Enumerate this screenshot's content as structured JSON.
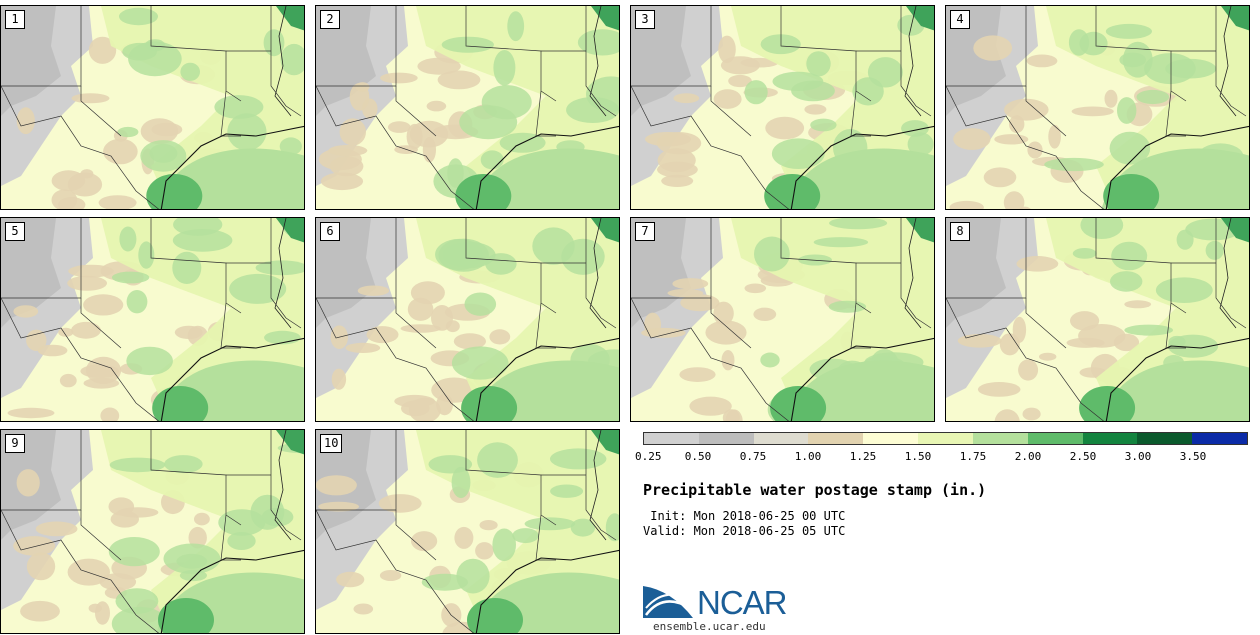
{
  "panels": [
    {
      "label": "1",
      "variant": 0
    },
    {
      "label": "2",
      "variant": 1
    },
    {
      "label": "3",
      "variant": 2
    },
    {
      "label": "4",
      "variant": 3
    },
    {
      "label": "5",
      "variant": 4
    },
    {
      "label": "6",
      "variant": 5
    },
    {
      "label": "7",
      "variant": 6
    },
    {
      "label": "8",
      "variant": 7
    },
    {
      "label": "9",
      "variant": 8
    },
    {
      "label": "10",
      "variant": 9
    }
  ],
  "colorbar": {
    "colors": [
      "#d0d0d0",
      "#bdbdbd",
      "#dedcd0",
      "#e2d3b0",
      "#fdfdd4",
      "#e8f6b4",
      "#b4e09c",
      "#5fbb6a",
      "#13843f",
      "#0b5a2d",
      "#0b2ba7"
    ],
    "tick_labels": [
      "0.25",
      "0.50",
      "0.75",
      "1.00",
      "1.25",
      "1.50",
      "1.75",
      "2.00",
      "2.50",
      "3.00",
      "3.50"
    ]
  },
  "title": "Precipitable water postage stamp (in.)",
  "init": "Init: Mon 2018-06-25 00 UTC",
  "valid": "Valid: Mon 2018-06-25 05 UTC",
  "logo": {
    "text": "NCAR",
    "url": "ensemble.ucar.edu"
  }
}
